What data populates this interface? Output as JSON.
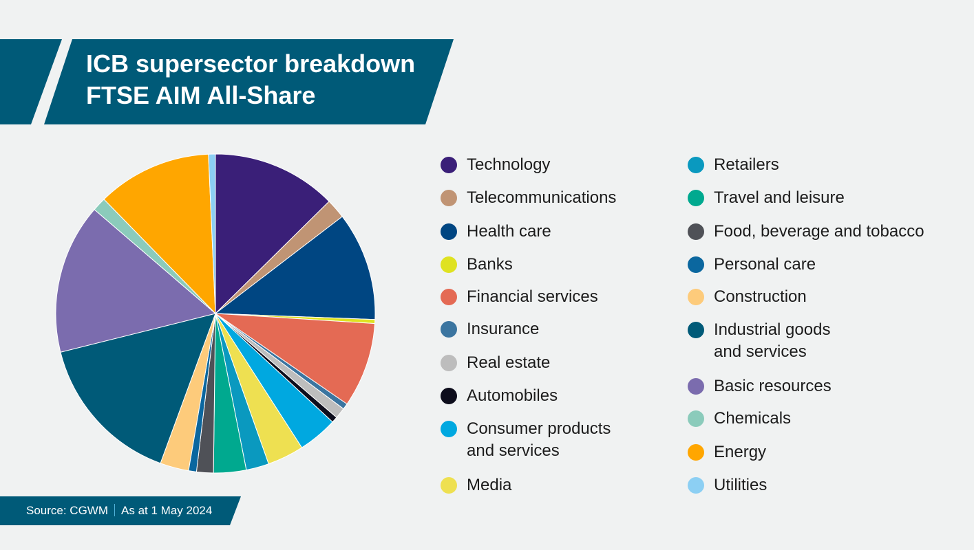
{
  "header": {
    "title_line1": "ICB supersector breakdown",
    "title_line2": "FTSE AIM All-Share"
  },
  "footer": {
    "source": "Source: CGWM",
    "date": "As at 1 May 2024"
  },
  "chart_data": {
    "type": "pie",
    "title": "ICB supersector breakdown FTSE AIM All-Share",
    "legend_position": "right",
    "slices": [
      {
        "label": "Technology",
        "value": 12.6,
        "color": "#3a1f78"
      },
      {
        "label": "Telecommunications",
        "value": 2.0,
        "color": "#c09474"
      },
      {
        "label": "Health care",
        "value": 11.0,
        "color": "#004682"
      },
      {
        "label": "Banks",
        "value": 0.4,
        "color": "#dfe221"
      },
      {
        "label": "Financial services",
        "value": 8.6,
        "color": "#e46a54"
      },
      {
        "label": "Insurance",
        "value": 0.6,
        "color": "#3b75a0"
      },
      {
        "label": "Real estate",
        "value": 1.1,
        "color": "#bdbdbd"
      },
      {
        "label": "Automobiles",
        "value": 0.6,
        "color": "#0d0d1c"
      },
      {
        "label": "Consumer products\nand services",
        "value": 4.0,
        "color": "#00a8e0"
      },
      {
        "label": "Media",
        "value": 3.7,
        "color": "#eee051"
      },
      {
        "label": "Retailers",
        "value": 2.3,
        "color": "#0a99bf"
      },
      {
        "label": "Travel and leisure",
        "value": 3.3,
        "color": "#00a98f"
      },
      {
        "label": "Food, beverage and tobacco",
        "value": 1.7,
        "color": "#4f5157"
      },
      {
        "label": "Personal care",
        "value": 0.8,
        "color": "#0b679f"
      },
      {
        "label": "Construction",
        "value": 2.9,
        "color": "#fdcb7b"
      },
      {
        "label": "Industrial goods\nand services",
        "value": 15.5,
        "color": "#005a78"
      },
      {
        "label": "Basic resources",
        "value": 15.2,
        "color": "#7b6cae"
      },
      {
        "label": "Chemicals",
        "value": 1.4,
        "color": "#8bcbbb"
      },
      {
        "label": "Energy",
        "value": 11.6,
        "color": "#ffa600"
      },
      {
        "label": "Utilities",
        "value": 0.7,
        "color": "#8ccff3"
      }
    ]
  }
}
